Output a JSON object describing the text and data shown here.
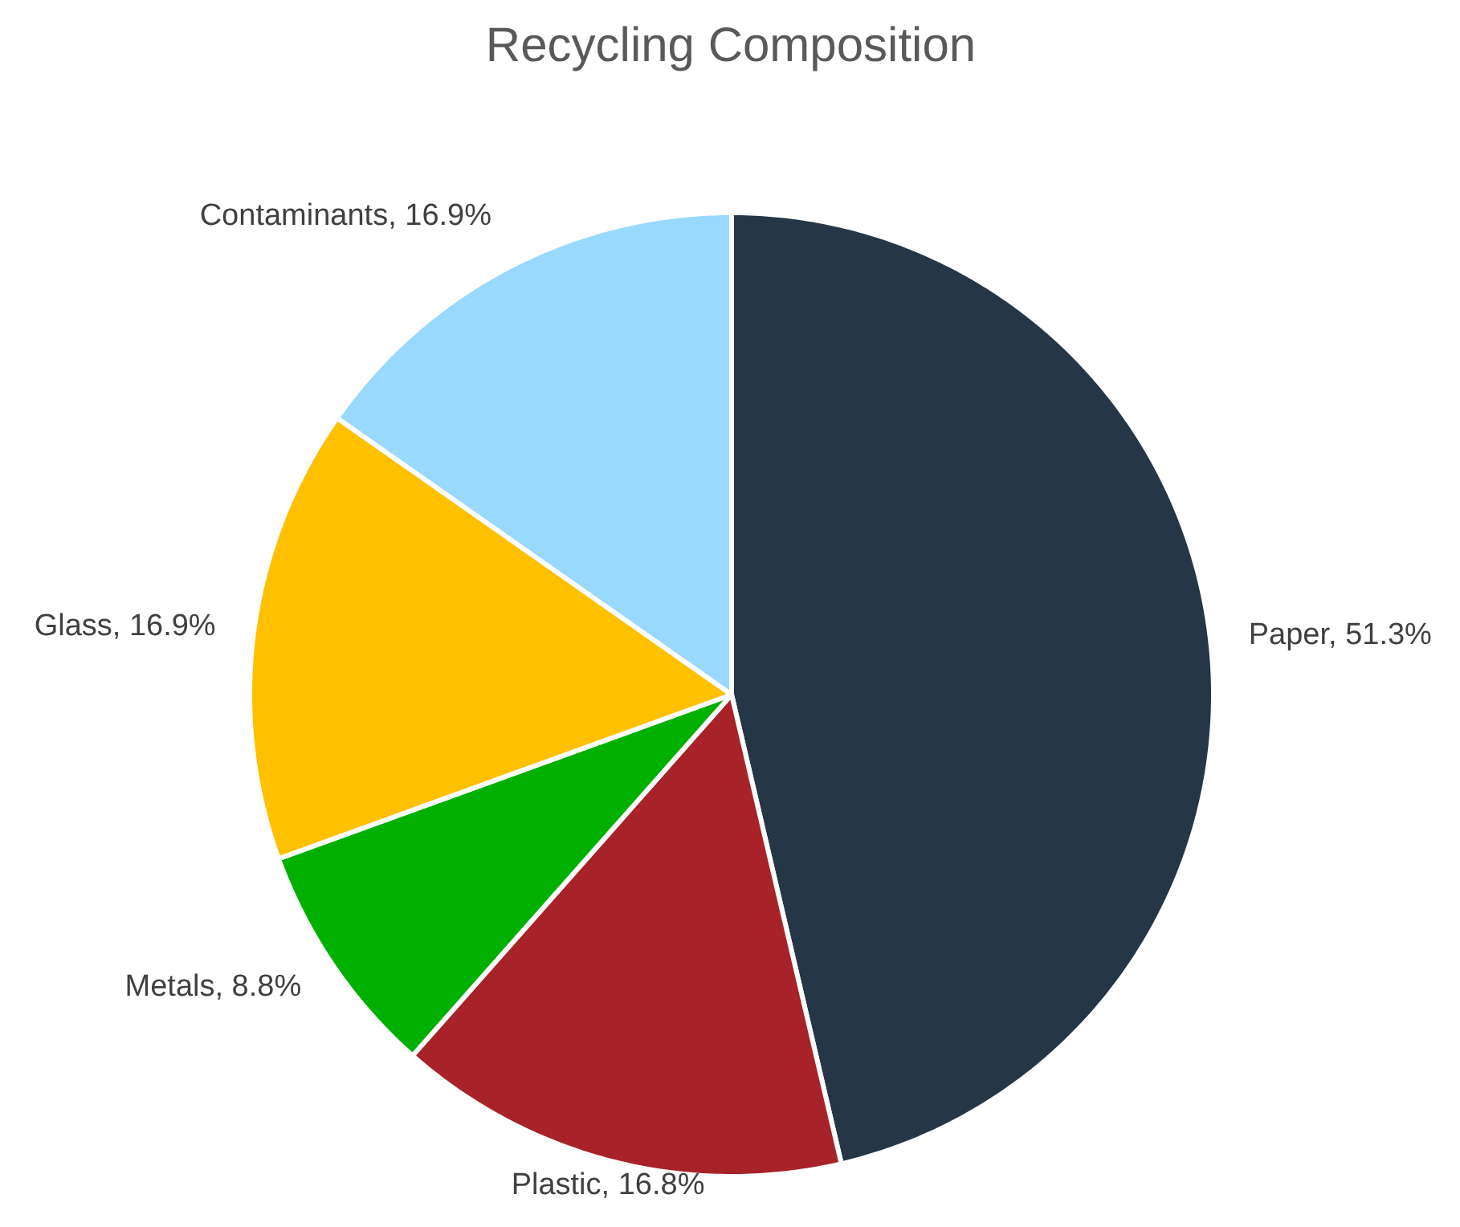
{
  "chart_data": {
    "type": "pie",
    "title": "Recycling Composition",
    "categories": [
      "Paper",
      "Plastic",
      "Metals",
      "Glass",
      "Contaminants"
    ],
    "values": [
      51.3,
      16.8,
      8.8,
      16.9,
      16.9
    ],
    "colors": [
      "#253646",
      "#a8222a",
      "#00b000",
      "#ffc000",
      "#99d9ff"
    ],
    "value_labels": [
      "51.3%",
      "16.8%",
      "8.8%",
      "16.9%",
      "16.9%"
    ]
  }
}
